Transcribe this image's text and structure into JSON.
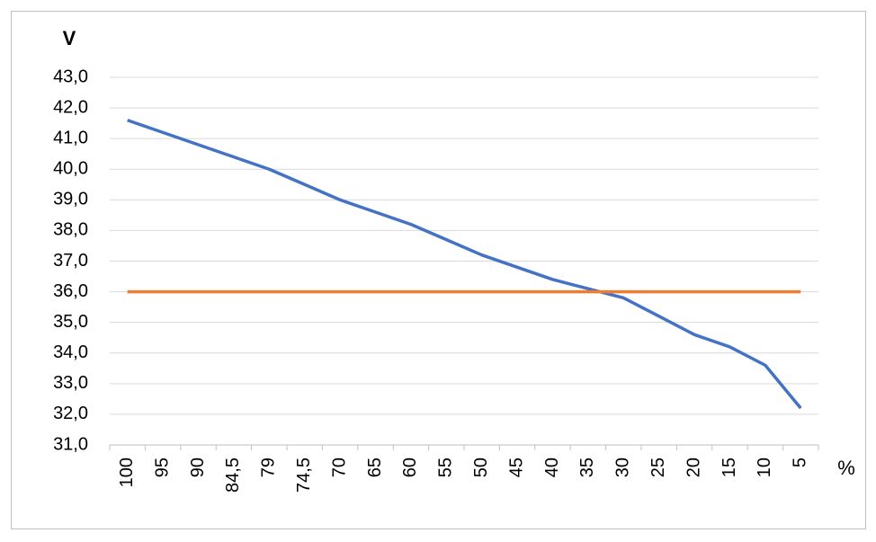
{
  "chart_data": {
    "type": "line",
    "y_label": "V",
    "x_label": "%",
    "categories": [
      "100",
      "95",
      "90",
      "84,5",
      "79",
      "74,5",
      "70",
      "65",
      "60",
      "55",
      "50",
      "45",
      "40",
      "35",
      "30",
      "25",
      "20",
      "15",
      "10",
      "5"
    ],
    "series": [
      {
        "color": "#4472c4",
        "values": [
          41.6,
          41.2,
          40.8,
          40.4,
          40.0,
          39.5,
          39.0,
          38.6,
          38.2,
          37.7,
          37.2,
          36.8,
          36.4,
          36.1,
          35.8,
          35.2,
          34.6,
          34.2,
          33.6,
          32.2
        ]
      },
      {
        "color": "#ed7d31",
        "values": [
          36,
          36,
          36,
          36,
          36,
          36,
          36,
          36,
          36,
          36,
          36,
          36,
          36,
          36,
          36,
          36,
          36,
          36,
          36,
          36
        ]
      }
    ],
    "ylim": [
      31,
      43
    ],
    "yticks": [
      {
        "value": 31,
        "label": "31,0"
      },
      {
        "value": 32,
        "label": "32,0"
      },
      {
        "value": 33,
        "label": "33,0"
      },
      {
        "value": 34,
        "label": "34,0"
      },
      {
        "value": 35,
        "label": "35,0"
      },
      {
        "value": 36,
        "label": "36,0"
      },
      {
        "value": 37,
        "label": "37,0"
      },
      {
        "value": 38,
        "label": "38,0"
      },
      {
        "value": 39,
        "label": "39,0"
      },
      {
        "value": 40,
        "label": "40,0"
      },
      {
        "value": 41,
        "label": "41,0"
      },
      {
        "value": 42,
        "label": "42,0"
      },
      {
        "value": 43,
        "label": "43,0"
      }
    ],
    "grid": true
  }
}
